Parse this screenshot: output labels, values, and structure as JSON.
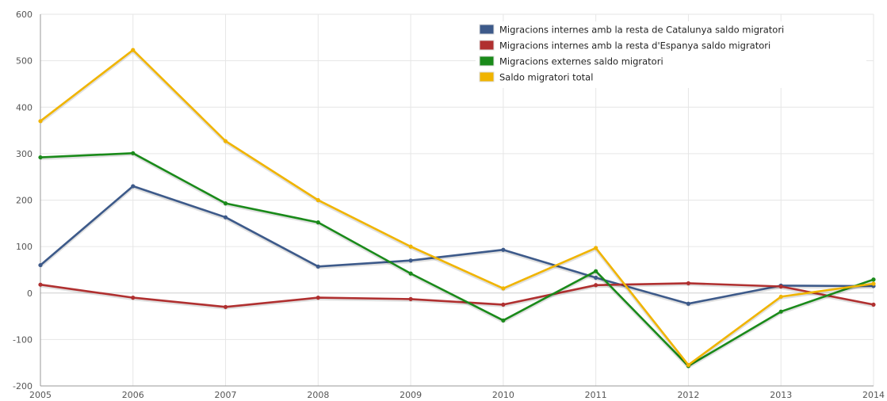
{
  "chart_data": {
    "type": "line",
    "categories": [
      "2005",
      "2006",
      "2007",
      "2008",
      "2009",
      "2010",
      "2011",
      "2012",
      "2013",
      "2014"
    ],
    "ylim": [
      -200,
      600
    ],
    "yticks": [
      -200,
      -100,
      0,
      100,
      200,
      300,
      400,
      500,
      600
    ],
    "ytick_labels": [
      "-200",
      "-100",
      "0",
      "100",
      "200",
      "300",
      "400",
      "500",
      "600"
    ],
    "grid": true,
    "legend_position": "top-right",
    "series": [
      {
        "name": "Migracions internes amb la resta de Catalunya saldo migratori",
        "color": "#3d5a8a",
        "values": [
          60,
          230,
          163,
          57,
          70,
          93,
          33,
          -23,
          16,
          15
        ]
      },
      {
        "name": "Migracions internes amb la resta d'Espanya saldo migratori",
        "color": "#b03030",
        "values": [
          18,
          -10,
          -30,
          -10,
          -13,
          -25,
          17,
          21,
          14,
          -25
        ]
      },
      {
        "name": "Migracions externes saldo migratori",
        "color": "#1a8a1a",
        "values": [
          292,
          301,
          193,
          152,
          42,
          -59,
          47,
          -157,
          -40,
          29
        ]
      },
      {
        "name": "Saldo migratori total",
        "color": "#f0b400",
        "values": [
          370,
          523,
          327,
          200,
          100,
          10,
          97,
          -155,
          -8,
          20
        ]
      }
    ]
  }
}
